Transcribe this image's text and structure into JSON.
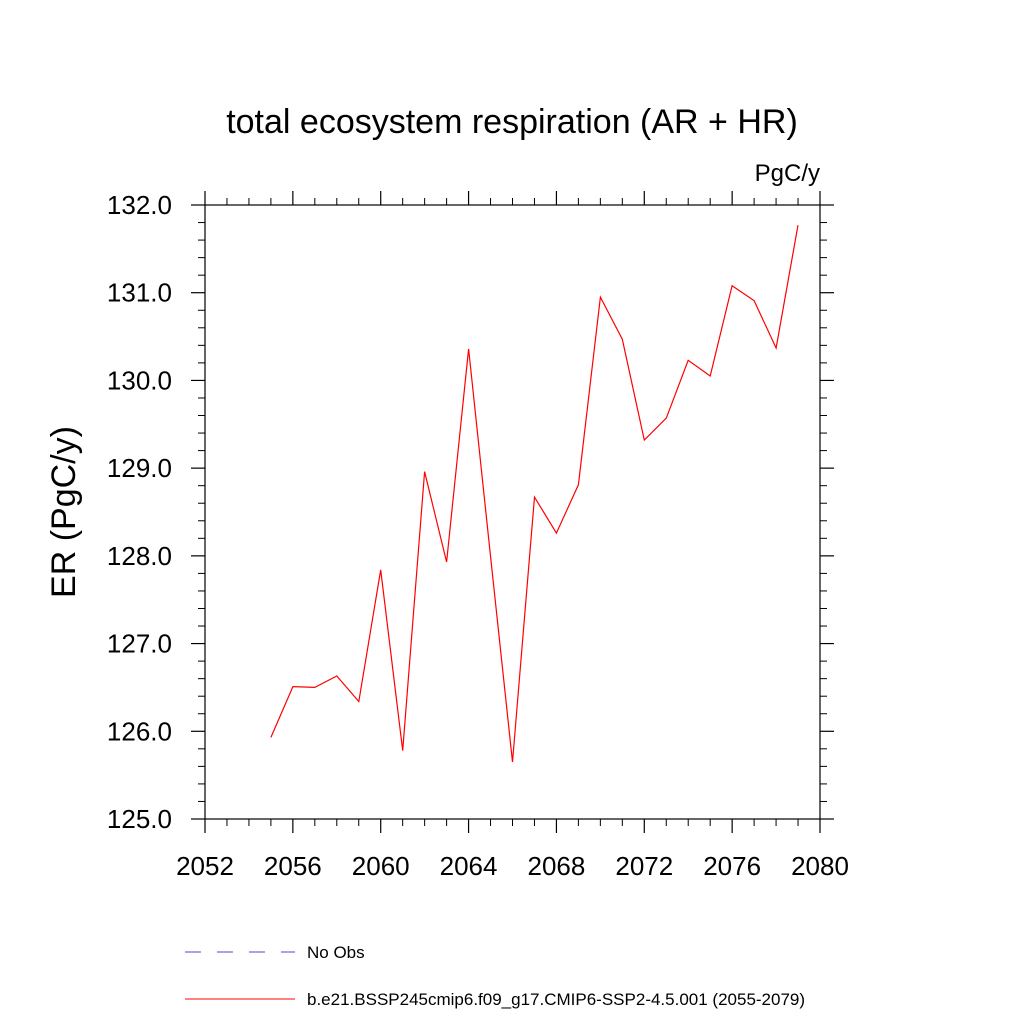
{
  "colors": {
    "background": "#ffffff",
    "axis": "#000000",
    "series_line": "#ff0000",
    "obs_line": "#4a4ac8"
  },
  "chart_data": {
    "type": "line",
    "title": "total ecosystem respiration (AR + HR)",
    "units": "PgC/y",
    "xlabel": "",
    "ylabel": "ER  (PgC/y)",
    "xlim": [
      2052,
      2080
    ],
    "ylim": [
      125.0,
      132.0
    ],
    "x_ticks": [
      "2052",
      "2056",
      "2060",
      "2064",
      "2068",
      "2072",
      "2076",
      "2080"
    ],
    "y_ticks": [
      "125.0",
      "126.0",
      "127.0",
      "128.0",
      "129.0",
      "130.0",
      "131.0",
      "132.0"
    ],
    "grid": false,
    "legend_position": "bottom",
    "series": [
      {
        "name": "b.e21.BSSP245cmip6.f09_g17.CMIP6-SSP2-4.5.001 (2055-2079)",
        "color": "#ff0000",
        "style": "solid",
        "x": [
          2055,
          2056,
          2057,
          2058,
          2059,
          2060,
          2061,
          2062,
          2063,
          2064,
          2065,
          2066,
          2067,
          2068,
          2069,
          2070,
          2071,
          2072,
          2073,
          2074,
          2075,
          2076,
          2077,
          2078,
          2079
        ],
        "y": [
          125.93,
          126.51,
          126.5,
          126.63,
          126.34,
          127.84,
          125.78,
          128.96,
          127.93,
          130.36,
          128.0,
          125.65,
          128.67,
          128.26,
          128.81,
          130.95,
          130.47,
          129.32,
          129.57,
          130.23,
          130.05,
          131.08,
          130.91,
          130.37,
          131.77
        ]
      }
    ],
    "legend": [
      {
        "label": "No Obs",
        "style": "dashed",
        "color": "#4a4ac8"
      },
      {
        "label": "b.e21.BSSP245cmip6.f09_g17.CMIP6-SSP2-4.5.001 (2055-2079)",
        "style": "solid",
        "color": "#ff0000"
      }
    ]
  }
}
